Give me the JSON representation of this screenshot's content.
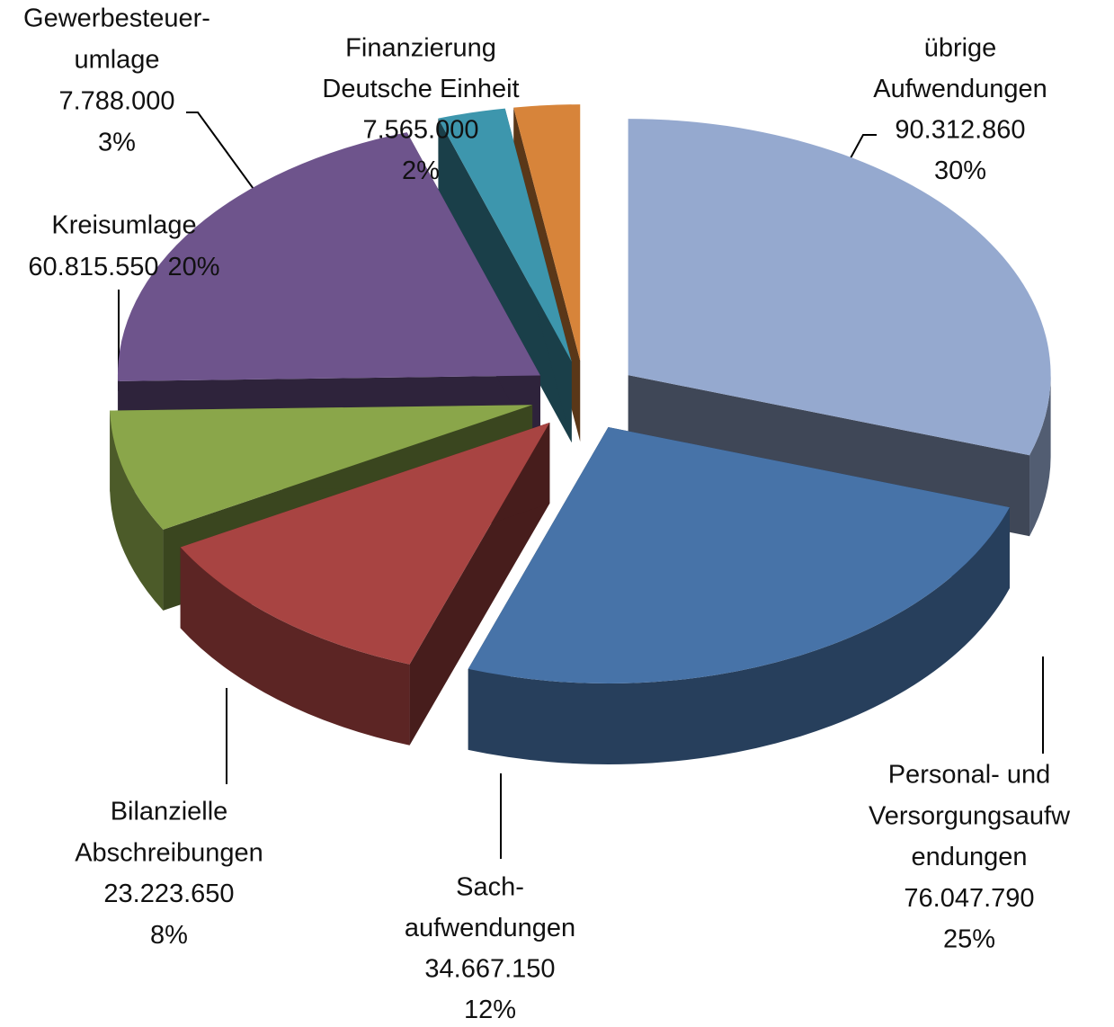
{
  "chart_data": {
    "type": "pie3d",
    "categories": [
      [
        "übrige",
        "Aufwendungen"
      ],
      [
        "Personal- und",
        "Versorgungsaufw",
        "endungen"
      ],
      [
        "Sach-",
        "aufwendungen"
      ],
      [
        "Bilanzielle",
        "Abschreibungen"
      ],
      [
        "Kreisumlage"
      ],
      [
        "Gewerbesteuer-",
        "umlage"
      ],
      [
        "Finanzierung",
        "Deutsche Einheit"
      ]
    ],
    "values": [
      90312860,
      76047790,
      34667150,
      23223650,
      60815550,
      7788000,
      7565000
    ],
    "value_labels": [
      "90.312.860",
      "76.047.790",
      "34.667.150",
      "23.223.650",
      "60.815.550",
      "7.788.000",
      "7.565.000"
    ],
    "percent_values": [
      30,
      25,
      12,
      8,
      20,
      3,
      2
    ],
    "percent_labels": [
      "30%",
      "25%",
      "12%",
      "8%",
      "20%",
      "3%",
      "2%"
    ],
    "colors": [
      "#95a9cf",
      "#4773a8",
      "#a84442",
      "#8aa64a",
      "#6e548c",
      "#3d96ad",
      "#d7843a"
    ]
  }
}
